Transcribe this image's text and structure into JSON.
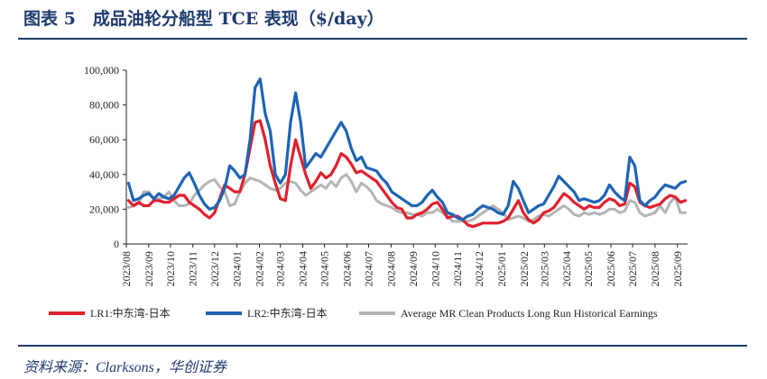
{
  "page": {
    "title": "图表 5　成品油轮分船型 TCE 表现（$/day）",
    "source": "资料来源：Clarksons，华创证券"
  },
  "chart_data": {
    "type": "line",
    "xlabel": "",
    "ylabel": "",
    "ylim": [
      0,
      100000
    ],
    "yticks": [
      0,
      20000,
      40000,
      60000,
      80000,
      100000
    ],
    "ytick_labels": [
      "0",
      "20,000",
      "40,000",
      "60,000",
      "80,000",
      "100,000"
    ],
    "xlim": [
      "2023-08-01",
      "2025-09-15"
    ],
    "xtick_labels": [
      "2023/08",
      "2023/09",
      "2023/10",
      "2023/11",
      "2023/12",
      "2024/01",
      "2024/02",
      "2024/03",
      "2024/04",
      "2024/05",
      "2024/06",
      "2024/07",
      "2024/08",
      "2024/09",
      "2024/10",
      "2024/11",
      "2024/12",
      "2025/01",
      "2025/02",
      "2025/03",
      "2025/04",
      "2025/05",
      "2025/06",
      "2025/07",
      "2025/08",
      "2025/09"
    ],
    "xticks": [
      "2023-08-01",
      "2023-09-01",
      "2023-10-01",
      "2023-11-01",
      "2023-12-01",
      "2024-01-01",
      "2024-02-01",
      "2024-03-01",
      "2024-04-01",
      "2024-05-01",
      "2024-06-01",
      "2024-07-01",
      "2024-08-01",
      "2024-09-01",
      "2024-10-01",
      "2024-11-01",
      "2024-12-01",
      "2025-01-01",
      "2025-02-01",
      "2025-03-01",
      "2025-04-01",
      "2025-05-01",
      "2025-06-01",
      "2025-07-01",
      "2025-08-01",
      "2025-09-01"
    ],
    "legend_position": "bottom",
    "x": [
      "2023-08-04",
      "2023-08-11",
      "2023-08-18",
      "2023-08-25",
      "2023-09-01",
      "2023-09-08",
      "2023-09-15",
      "2023-09-22",
      "2023-09-29",
      "2023-10-06",
      "2023-10-13",
      "2023-10-20",
      "2023-10-27",
      "2023-11-03",
      "2023-11-10",
      "2023-11-17",
      "2023-11-24",
      "2023-12-01",
      "2023-12-08",
      "2023-12-15",
      "2023-12-22",
      "2023-12-29",
      "2024-01-05",
      "2024-01-12",
      "2024-01-19",
      "2024-01-26",
      "2024-02-02",
      "2024-02-09",
      "2024-02-16",
      "2024-02-23",
      "2024-03-01",
      "2024-03-08",
      "2024-03-15",
      "2024-03-22",
      "2024-03-29",
      "2024-04-05",
      "2024-04-12",
      "2024-04-19",
      "2024-04-26",
      "2024-05-03",
      "2024-05-10",
      "2024-05-17",
      "2024-05-24",
      "2024-05-31",
      "2024-06-07",
      "2024-06-14",
      "2024-06-21",
      "2024-06-28",
      "2024-07-05",
      "2024-07-12",
      "2024-07-19",
      "2024-07-26",
      "2024-08-02",
      "2024-08-09",
      "2024-08-16",
      "2024-08-23",
      "2024-08-30",
      "2024-09-06",
      "2024-09-13",
      "2024-09-20",
      "2024-09-27",
      "2024-10-04",
      "2024-10-11",
      "2024-10-18",
      "2024-10-25",
      "2024-11-01",
      "2024-11-08",
      "2024-11-15",
      "2024-11-22",
      "2024-11-29",
      "2024-12-06",
      "2024-12-13",
      "2024-12-20",
      "2024-12-27",
      "2025-01-03",
      "2025-01-10",
      "2025-01-17",
      "2025-01-24",
      "2025-01-31",
      "2025-02-07",
      "2025-02-14",
      "2025-02-21",
      "2025-02-28",
      "2025-03-07",
      "2025-03-14",
      "2025-03-21",
      "2025-03-28",
      "2025-04-04",
      "2025-04-11",
      "2025-04-18",
      "2025-04-25",
      "2025-05-02",
      "2025-05-09",
      "2025-05-16",
      "2025-05-23",
      "2025-05-30",
      "2025-06-06",
      "2025-06-13",
      "2025-06-20",
      "2025-06-27",
      "2025-07-04",
      "2025-07-11",
      "2025-07-18",
      "2025-07-25",
      "2025-08-01",
      "2025-08-08",
      "2025-08-15",
      "2025-08-22",
      "2025-08-29",
      "2025-09-05",
      "2025-09-12"
    ],
    "series": [
      {
        "name": "LR1:中东湾-日本",
        "color": "#e0202e",
        "values": [
          25000,
          22000,
          24000,
          22000,
          22000,
          25000,
          25000,
          24000,
          24000,
          26000,
          28000,
          28000,
          24000,
          22000,
          20000,
          17000,
          15000,
          18000,
          26000,
          34000,
          32000,
          30000,
          30000,
          40000,
          55000,
          70000,
          71000,
          60000,
          45000,
          35000,
          26000,
          25000,
          45000,
          60000,
          50000,
          40000,
          32000,
          36000,
          41000,
          38000,
          40000,
          45000,
          52000,
          50000,
          46000,
          41000,
          42000,
          40000,
          38000,
          36000,
          32000,
          28000,
          24000,
          21000,
          20000,
          15000,
          15000,
          17000,
          18000,
          20000,
          23000,
          24000,
          20000,
          15000,
          16000,
          16000,
          14000,
          11000,
          10000,
          11000,
          12000,
          12000,
          12000,
          12000,
          13000,
          15000,
          20000,
          25000,
          18000,
          14000,
          12000,
          14000,
          18000,
          19000,
          21000,
          25000,
          29000,
          27000,
          24000,
          22000,
          20000,
          22000,
          21000,
          21000,
          24000,
          26000,
          25000,
          22000,
          23000,
          35000,
          33000,
          24000,
          22000,
          21000,
          22000,
          23000,
          26000,
          28000,
          27000,
          24000,
          25000
        ]
      },
      {
        "name": "LR2:中东湾-日本",
        "color": "#1e64b4",
        "values": [
          35000,
          25000,
          26000,
          28000,
          29000,
          26000,
          29000,
          27000,
          26000,
          28000,
          33000,
          38000,
          41000,
          35000,
          28000,
          23000,
          20000,
          21000,
          25000,
          32000,
          45000,
          42000,
          38000,
          40000,
          60000,
          90000,
          95000,
          75000,
          65000,
          40000,
          35000,
          40000,
          70000,
          87000,
          70000,
          44000,
          48000,
          52000,
          50000,
          55000,
          60000,
          65000,
          70000,
          65000,
          55000,
          48000,
          50000,
          44000,
          43000,
          42000,
          38000,
          35000,
          30000,
          28000,
          26000,
          24000,
          22000,
          22000,
          24000,
          28000,
          31000,
          27000,
          24000,
          18000,
          17000,
          15000,
          14000,
          16000,
          17000,
          20000,
          22000,
          21000,
          20000,
          18000,
          17000,
          22000,
          36000,
          32000,
          25000,
          18000,
          20000,
          22000,
          23000,
          28000,
          33000,
          39000,
          36000,
          33000,
          30000,
          25000,
          26000,
          25000,
          24000,
          25000,
          28000,
          34000,
          30000,
          27000,
          25000,
          50000,
          45000,
          25000,
          22000,
          25000,
          27000,
          31000,
          34000,
          33000,
          32000,
          35000,
          36000
        ]
      },
      {
        "name": "Average MR Clean Products Long Run Historical Earnings",
        "color": "#b4b4b4",
        "values": [
          21000,
          22000,
          23000,
          30000,
          30000,
          26000,
          26000,
          27000,
          30000,
          25000,
          22000,
          22000,
          23000,
          28000,
          31000,
          34000,
          36000,
          37000,
          33000,
          30000,
          22000,
          23000,
          30000,
          35000,
          38000,
          37000,
          36000,
          34000,
          32000,
          31000,
          32000,
          35000,
          36000,
          35000,
          31000,
          28000,
          30000,
          32000,
          34000,
          32000,
          36000,
          33000,
          38000,
          40000,
          36000,
          30000,
          35000,
          33000,
          30000,
          25000,
          23000,
          22000,
          21000,
          19000,
          18000,
          18000,
          17000,
          17000,
          16000,
          18000,
          18000,
          20000,
          18000,
          16000,
          13000,
          13000,
          13000,
          13000,
          14000,
          16000,
          18000,
          20000,
          22000,
          20000,
          18000,
          14000,
          15000,
          16000,
          15000,
          13000,
          14000,
          16000,
          17000,
          16000,
          18000,
          20000,
          22000,
          20000,
          17000,
          16000,
          18000,
          17000,
          18000,
          17000,
          18000,
          20000,
          20000,
          18000,
          19000,
          25000,
          24000,
          18000,
          16000,
          17000,
          18000,
          22000,
          18000,
          24000,
          27000,
          18000,
          18000
        ]
      }
    ]
  }
}
